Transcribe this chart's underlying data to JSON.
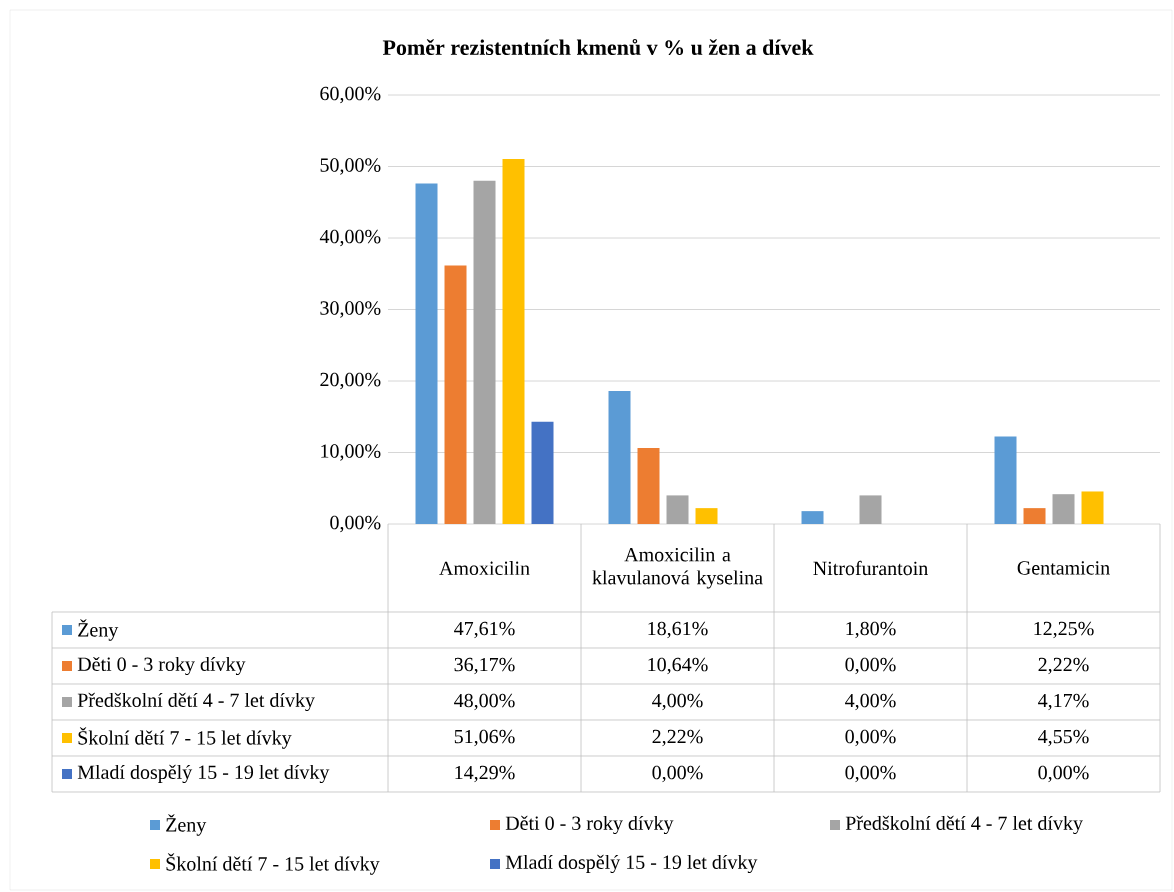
{
  "chart_data": {
    "type": "bar",
    "title": "Poměr rezistentních kmenů v % u žen a dívek",
    "categories": [
      "Amoxicilin",
      "Amoxicilin a klavulanová kyselina",
      "Nitrofurantoin",
      "Gentamicin"
    ],
    "series": [
      {
        "name": "Ženy",
        "color": "#5b9bd5",
        "values": [
          47.61,
          18.61,
          1.8,
          12.25
        ],
        "value_labels": [
          "47,61%",
          "18,61%",
          "1,80%",
          "12,25%"
        ]
      },
      {
        "name": "Děti 0 - 3 roky dívky",
        "color": "#ed7d31",
        "values": [
          36.17,
          10.64,
          0.0,
          2.22
        ],
        "value_labels": [
          "36,17%",
          "10,64%",
          "0,00%",
          "2,22%"
        ]
      },
      {
        "name": "Předškolní dětí 4 - 7 let dívky",
        "color": "#a5a5a5",
        "values": [
          48.0,
          4.0,
          4.0,
          4.17
        ],
        "value_labels": [
          "48,00%",
          "4,00%",
          "4,00%",
          "4,17%"
        ]
      },
      {
        "name": "Školní dětí 7 - 15 let dívky",
        "color": "#ffc000",
        "values": [
          51.06,
          2.22,
          0.0,
          4.55
        ],
        "value_labels": [
          "51,06%",
          "2,22%",
          "0,00%",
          "4,55%"
        ]
      },
      {
        "name": "Mladí dospělý 15 - 19 let dívky",
        "color": "#4472c4",
        "values": [
          14.29,
          0.0,
          0.0,
          0.0
        ],
        "value_labels": [
          "14,29%",
          "0,00%",
          "0,00%",
          "0,00%"
        ]
      }
    ],
    "ylim": [
      0,
      60
    ],
    "yticks": [
      {
        "value": 0,
        "label": "0,00%"
      },
      {
        "value": 10,
        "label": "10,00%"
      },
      {
        "value": 20,
        "label": "20,00%"
      },
      {
        "value": 30,
        "label": "30,00%"
      },
      {
        "value": 40,
        "label": "40,00%"
      },
      {
        "value": 50,
        "label": "50,00%"
      },
      {
        "value": 60,
        "label": "60,00%"
      }
    ],
    "grid": "y",
    "legend": "bottom"
  }
}
